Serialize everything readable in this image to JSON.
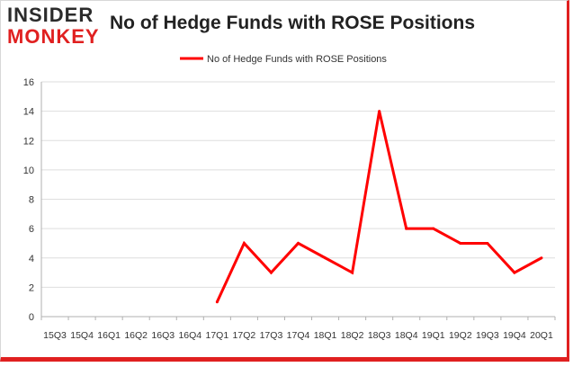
{
  "logo": {
    "line1": "INSIDER",
    "line2": "MONKEY"
  },
  "chart_data": {
    "type": "line",
    "title": "No of Hedge Funds with ROSE Positions",
    "xlabel": "",
    "ylabel": "",
    "categories": [
      "15Q3",
      "15Q4",
      "16Q1",
      "16Q2",
      "16Q3",
      "16Q4",
      "17Q1",
      "17Q2",
      "17Q3",
      "17Q4",
      "18Q1",
      "18Q2",
      "18Q3",
      "18Q4",
      "19Q1",
      "19Q2",
      "19Q3",
      "19Q4",
      "20Q1"
    ],
    "series": [
      {
        "name": "No of Hedge Funds with ROSE Positions",
        "color": "#ff0000",
        "values": [
          null,
          null,
          null,
          null,
          null,
          null,
          1,
          5,
          3,
          5,
          4,
          3,
          14,
          6,
          6,
          5,
          5,
          3,
          4
        ]
      }
    ],
    "ylim": [
      0,
      16
    ],
    "yticks": [
      0,
      2,
      4,
      6,
      8,
      10,
      12,
      14,
      16
    ],
    "grid": true,
    "legend": "top-center"
  }
}
